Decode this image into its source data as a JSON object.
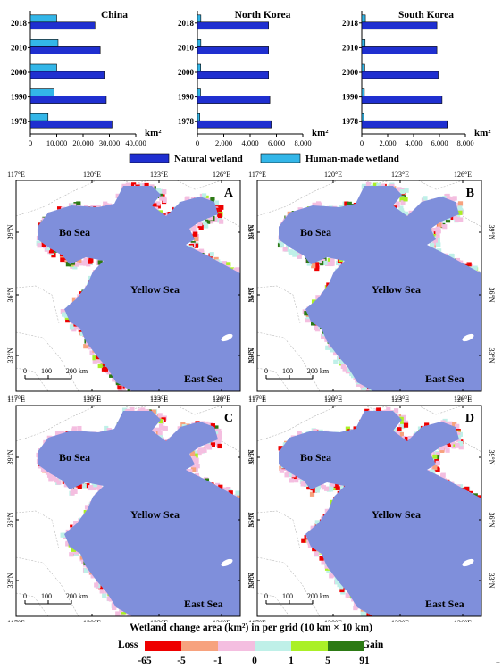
{
  "chart_data": [
    {
      "type": "bar",
      "orientation": "horizontal",
      "title": "China",
      "categories": [
        "2018",
        "2010",
        "2000",
        "1990",
        "1978"
      ],
      "series": [
        {
          "name": "Natural wetland",
          "values": [
            24500,
            26500,
            28000,
            28800,
            31000
          ]
        },
        {
          "name": "Human-made wetland",
          "values": [
            10000,
            10500,
            10000,
            9000,
            6700
          ]
        }
      ],
      "xticks": [
        "0",
        "10,000",
        "20,000",
        "30,000",
        "40,000"
      ],
      "xlim": [
        0,
        40000
      ],
      "xlabel": "km²"
    },
    {
      "type": "bar",
      "orientation": "horizontal",
      "title": "North Korea",
      "categories": [
        "2018",
        "2010",
        "2000",
        "1990",
        "1978"
      ],
      "series": [
        {
          "name": "Natural wetland",
          "values": [
            5400,
            5400,
            5400,
            5500,
            5600
          ]
        },
        {
          "name": "Human-made wetland",
          "values": [
            260,
            260,
            250,
            240,
            180
          ]
        }
      ],
      "xticks": [
        "0",
        "2,000",
        "4,000",
        "6,000",
        "8,000"
      ],
      "xlim": [
        0,
        8000
      ],
      "xlabel": "km²"
    },
    {
      "type": "bar",
      "orientation": "horizontal",
      "title": "South Korea",
      "categories": [
        "2018",
        "2010",
        "2000",
        "1990",
        "1978"
      ],
      "series": [
        {
          "name": "Natural wetland",
          "values": [
            5800,
            5800,
            5900,
            6200,
            6600
          ]
        },
        {
          "name": "Human-made wetland",
          "values": [
            280,
            260,
            230,
            200,
            150
          ]
        }
      ],
      "xticks": [
        "0",
        "2,000",
        "4,000",
        "6,000",
        "8,000"
      ],
      "xlim": [
        0,
        8000
      ],
      "xlabel": "km²"
    }
  ],
  "bar_legend": [
    "Natural wetland",
    "Human-made wetland"
  ],
  "colors": {
    "natural": "#1f2fd0",
    "human": "#33b6e8",
    "sea": "#7f8fdb",
    "land": "#ffffff",
    "border": "#b8b8b8"
  },
  "maps": {
    "panels": [
      "A",
      "B",
      "C",
      "D"
    ],
    "sea_labels": {
      "bo": "Bo Sea",
      "yellow": "Yellow Sea",
      "east": "East Sea"
    },
    "lon_ticks": [
      "117°E",
      "120°E",
      "123°E",
      "126°E"
    ],
    "lat_ticks": [
      "39°N",
      "36°N",
      "33°N"
    ],
    "scalebar": [
      "0",
      "100",
      "200 km"
    ]
  },
  "change_legend": {
    "title": "Wetland change area (km²) in per grid (10 km × 10 km)",
    "loss_label": "Loss",
    "gain_label": "Gain",
    "ticks": [
      "-65",
      "-5",
      "-1",
      "0",
      "1",
      "5",
      "91"
    ],
    "colors": [
      "#ee0000",
      "#f7a27e",
      "#f4bee0",
      "#bff0e8",
      "#aaf027",
      "#2c7a14"
    ]
  },
  "corner_mark": "+"
}
